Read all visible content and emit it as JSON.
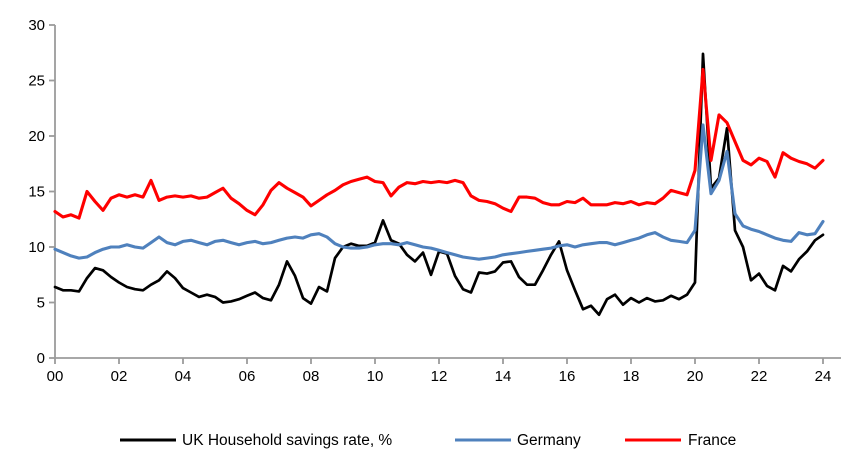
{
  "chart_data": {
    "type": "line",
    "title": "",
    "xlabel": "",
    "ylabel": "",
    "x_start_year": 2000,
    "x_frequency": "quarterly",
    "x_tick_labels": [
      "00",
      "02",
      "04",
      "06",
      "08",
      "10",
      "12",
      "14",
      "16",
      "18",
      "20",
      "22",
      "24"
    ],
    "y_ticks": [
      "0",
      "5",
      "10",
      "15",
      "20",
      "25",
      "30"
    ],
    "ylim": [
      0,
      30
    ],
    "grid": false,
    "legend_position": "bottom",
    "axis_color": "#9b9b9b",
    "series": [
      {
        "key": "uk",
        "name": "UK Household savings rate, %",
        "color": "#000000",
        "width": 2.7,
        "values": [
          6.4,
          6.1,
          6.1,
          6.0,
          7.2,
          8.1,
          7.9,
          7.3,
          6.8,
          6.4,
          6.2,
          6.1,
          6.6,
          7.0,
          7.8,
          7.2,
          6.3,
          5.9,
          5.5,
          5.7,
          5.5,
          5.0,
          5.1,
          5.3,
          5.6,
          5.9,
          5.4,
          5.2,
          6.6,
          8.7,
          7.4,
          5.4,
          4.9,
          6.4,
          6.0,
          9.0,
          10.0,
          10.3,
          10.1,
          10.1,
          10.4,
          12.4,
          10.6,
          10.3,
          9.3,
          8.7,
          9.5,
          7.5,
          9.6,
          9.4,
          7.4,
          6.2,
          5.9,
          7.7,
          7.6,
          7.8,
          8.6,
          8.7,
          7.3,
          6.6,
          6.6,
          7.9,
          9.3,
          10.5,
          7.9,
          6.1,
          4.4,
          4.7,
          3.9,
          5.3,
          5.7,
          4.8,
          5.4,
          5.0,
          5.4,
          5.1,
          5.2,
          5.6,
          5.3,
          5.7,
          6.8,
          27.4,
          15.3,
          16.2,
          20.7,
          11.5,
          10.0,
          7.0,
          7.6,
          6.5,
          6.1,
          8.3,
          7.8,
          8.9,
          9.6,
          10.6,
          11.1
        ]
      },
      {
        "key": "germany",
        "name": "Germany",
        "color": "#4F81BD",
        "width": 3.1,
        "values": [
          9.8,
          9.5,
          9.2,
          9.0,
          9.1,
          9.5,
          9.8,
          10.0,
          10.0,
          10.2,
          10.0,
          9.9,
          10.4,
          10.9,
          10.4,
          10.2,
          10.5,
          10.6,
          10.4,
          10.2,
          10.5,
          10.6,
          10.4,
          10.2,
          10.4,
          10.5,
          10.3,
          10.4,
          10.6,
          10.8,
          10.9,
          10.8,
          11.1,
          11.2,
          10.9,
          10.3,
          10.0,
          9.9,
          9.9,
          10.0,
          10.2,
          10.3,
          10.3,
          10.2,
          10.4,
          10.2,
          10.0,
          9.9,
          9.7,
          9.5,
          9.3,
          9.1,
          9.0,
          8.9,
          9.0,
          9.1,
          9.3,
          9.4,
          9.5,
          9.6,
          9.7,
          9.8,
          9.9,
          10.1,
          10.2,
          10.0,
          10.2,
          10.3,
          10.4,
          10.4,
          10.2,
          10.4,
          10.6,
          10.8,
          11.1,
          11.3,
          10.9,
          10.6,
          10.5,
          10.4,
          11.5,
          21.0,
          14.8,
          16.0,
          18.6,
          13.0,
          11.9,
          11.6,
          11.4,
          11.1,
          10.8,
          10.6,
          10.5,
          11.3,
          11.1,
          11.2,
          12.3
        ]
      },
      {
        "key": "france",
        "name": "France",
        "color": "#FF0000",
        "width": 3.1,
        "values": [
          13.2,
          12.7,
          12.9,
          12.6,
          15.0,
          14.1,
          13.3,
          14.4,
          14.7,
          14.5,
          14.7,
          14.5,
          16.0,
          14.2,
          14.5,
          14.6,
          14.5,
          14.6,
          14.4,
          14.5,
          14.9,
          15.3,
          14.4,
          13.9,
          13.3,
          12.9,
          13.8,
          15.1,
          15.8,
          15.3,
          14.9,
          14.5,
          13.7,
          14.2,
          14.7,
          15.1,
          15.6,
          15.9,
          16.1,
          16.3,
          15.9,
          15.8,
          14.6,
          15.4,
          15.8,
          15.7,
          15.9,
          15.8,
          15.9,
          15.8,
          16.0,
          15.8,
          14.6,
          14.2,
          14.1,
          13.9,
          13.5,
          13.2,
          14.5,
          14.5,
          14.4,
          14.0,
          13.8,
          13.8,
          14.1,
          14.0,
          14.4,
          13.8,
          13.8,
          13.8,
          14.0,
          13.9,
          14.1,
          13.8,
          14.0,
          13.9,
          14.4,
          15.1,
          14.9,
          14.7,
          16.9,
          26.0,
          17.8,
          21.9,
          21.2,
          19.5,
          17.8,
          17.4,
          18.0,
          17.7,
          16.3,
          18.5,
          18.0,
          17.7,
          17.5,
          17.1,
          17.8
        ]
      }
    ]
  }
}
